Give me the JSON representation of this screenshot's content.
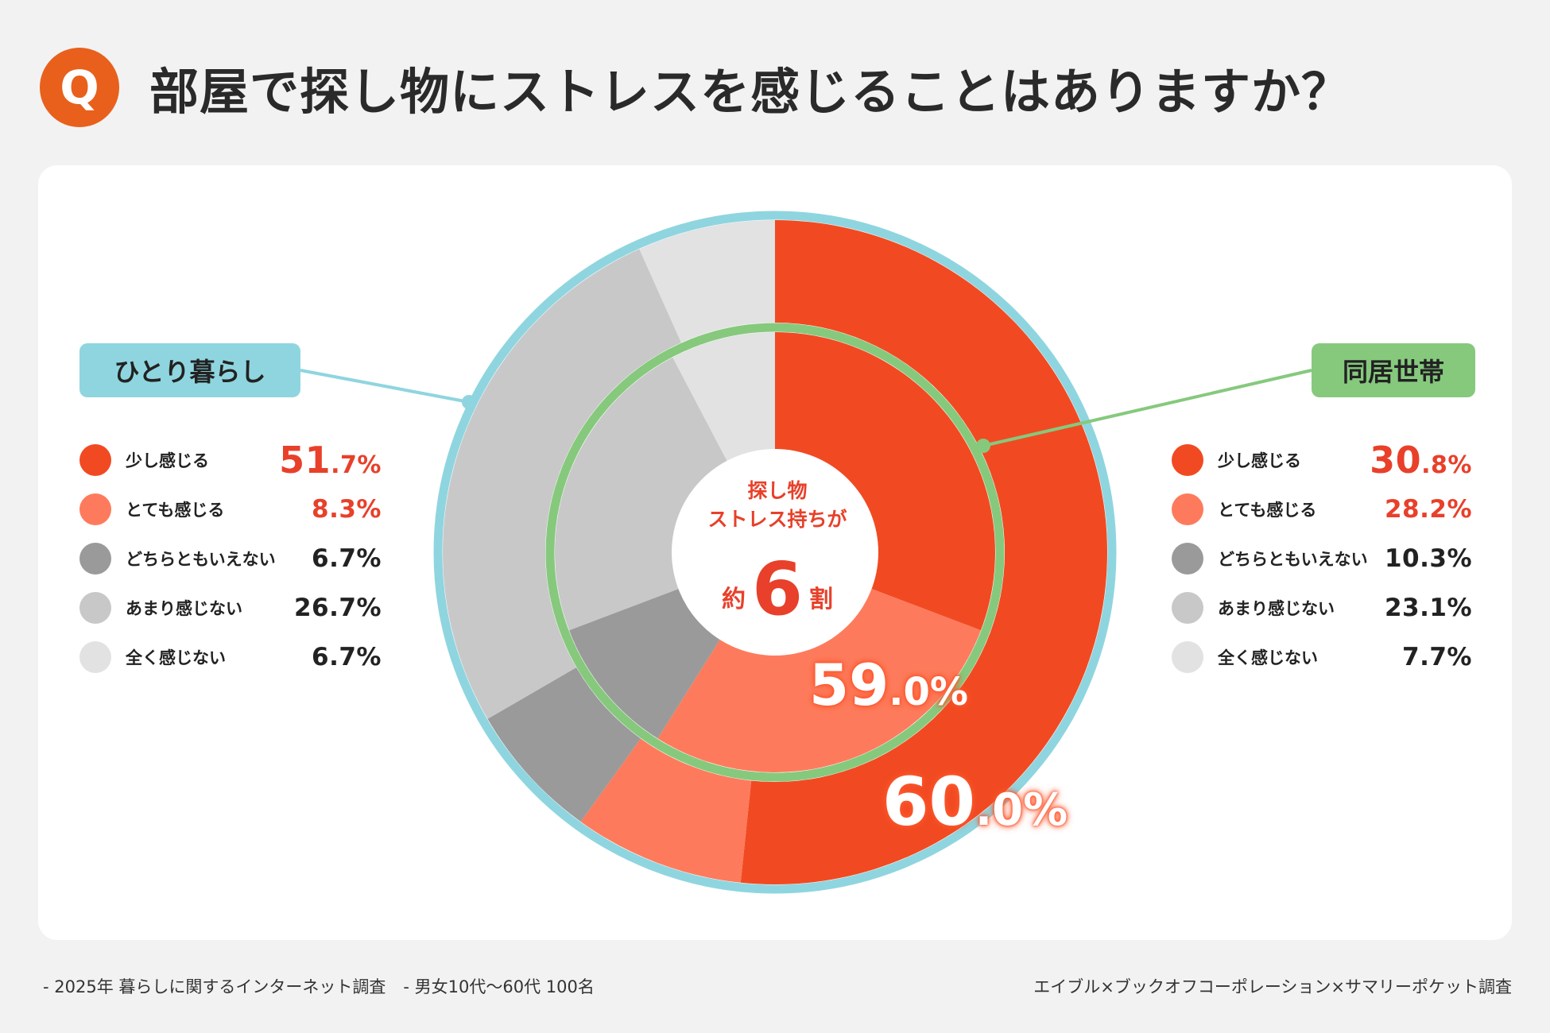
{
  "header": {
    "badge": "Q",
    "title": "部屋で探し物にストレスを感じることはありますか？"
  },
  "colors": {
    "accent": "#e8601c",
    "highlight": "#e8402a",
    "outer_ring": "#8fd5df",
    "inner_ring": "#86c97d"
  },
  "chart_data": [
    {
      "type": "pie",
      "name": "ひとり暮らし",
      "ring": "outer",
      "categories": [
        "少し感じる",
        "とても感じる",
        "どちらともいえない",
        "あまり感じない",
        "全く感じない"
      ],
      "values": [
        51.7,
        8.3,
        6.7,
        26.7,
        6.7
      ],
      "colors": [
        "#f14a22",
        "#fd7b5c",
        "#9a9a9a",
        "#c8c8c8",
        "#e2e2e2"
      ],
      "total_label": {
        "big": "60",
        "small": ".0%"
      }
    },
    {
      "type": "pie",
      "name": "同居世帯",
      "ring": "inner",
      "categories": [
        "少し感じる",
        "とても感じる",
        "どちらともいえない",
        "あまり感じない",
        "全く感じない"
      ],
      "values": [
        30.8,
        28.2,
        10.3,
        23.1,
        7.7
      ],
      "colors": [
        "#f14a22",
        "#fd7b5c",
        "#9a9a9a",
        "#c8c8c8",
        "#e2e2e2"
      ],
      "total_label": {
        "big": "59",
        "small": ".0%"
      }
    }
  ],
  "groups": {
    "left": {
      "tag": "ひとり暮らし",
      "items": [
        {
          "label": "少し感じる",
          "value": "51.7%",
          "big": "51",
          "small": ".7%",
          "color": "#f14a22"
        },
        {
          "label": "とても感じる",
          "value": "8.3%",
          "color": "#fd7b5c"
        },
        {
          "label": "どちらともいえない",
          "value": "6.7%",
          "color": "#9a9a9a"
        },
        {
          "label": "あまり感じない",
          "value": "26.7%",
          "color": "#c8c8c8"
        },
        {
          "label": "全く感じない",
          "value": "6.7%",
          "color": "#e2e2e2"
        }
      ]
    },
    "right": {
      "tag": "同居世帯",
      "items": [
        {
          "label": "少し感じる",
          "value": "30.8%",
          "big": "30",
          "small": ".8%",
          "color": "#f14a22"
        },
        {
          "label": "とても感じる",
          "value": "28.2%",
          "color": "#fd7b5c"
        },
        {
          "label": "どちらともいえない",
          "value": "10.3%",
          "color": "#9a9a9a"
        },
        {
          "label": "あまり感じない",
          "value": "23.1%",
          "color": "#c8c8c8"
        },
        {
          "label": "全く感じない",
          "value": "7.7%",
          "color": "#e2e2e2"
        }
      ]
    }
  },
  "center": {
    "line1": "探し物",
    "line2": "ストレス持ちが",
    "prefix": "約",
    "number": "6",
    "suffix": "割"
  },
  "footer": {
    "survey": "- 2025年 暮らしに関するインターネット調査",
    "sample": "- 男女10代〜60代 100名",
    "credit": "エイブル×ブックオフコーポレーション×サマリーポケット調査"
  }
}
